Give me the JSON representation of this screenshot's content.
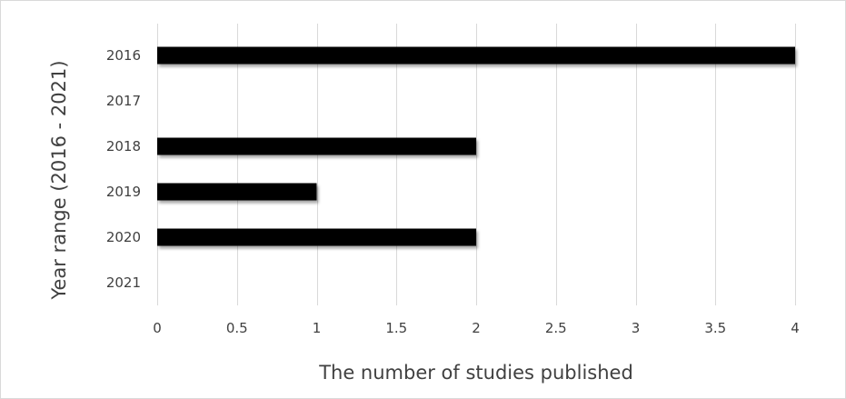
{
  "chart_data": {
    "type": "bar",
    "orientation": "horizontal",
    "categories": [
      "2016",
      "2017",
      "2018",
      "2019",
      "2020",
      "2021"
    ],
    "values": [
      4,
      0,
      2,
      1,
      2,
      0
    ],
    "title": "",
    "xlabel": "The number of studies published",
    "ylabel": "Year range (2016 - 2021)",
    "xlim": [
      0,
      4
    ],
    "xticks": [
      "0",
      "0.5",
      "1",
      "1.5",
      "2",
      "2.5",
      "3",
      "3.5",
      "4"
    ],
    "grid": "vertical",
    "legend": "none",
    "bar_color": "#000000",
    "grid_color": "#d9d9d9",
    "text_color": "#404040"
  }
}
